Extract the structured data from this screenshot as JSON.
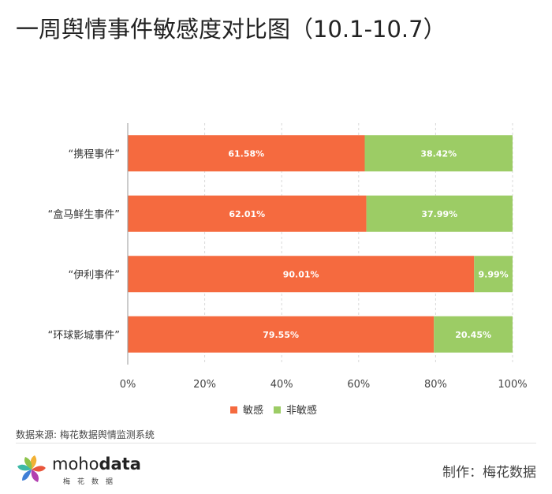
{
  "header": {
    "title": "一周舆情事件敏感度对比图（10.1-10.7）"
  },
  "chart_data": {
    "type": "bar",
    "orientation": "horizontal",
    "stacked": true,
    "categories": [
      "“携程事件”",
      "“盒马鲜生事件”",
      "“伊利事件”",
      "“环球影城事件”"
    ],
    "series": [
      {
        "name": "敏感",
        "color": "#f56a3f",
        "values": [
          61.58,
          62.01,
          90.01,
          79.55
        ],
        "labels": [
          "61.58%",
          "62.01%",
          "90.01%",
          "79.55%"
        ]
      },
      {
        "name": "非敏感",
        "color": "#9ccc65",
        "values": [
          38.42,
          37.99,
          9.99,
          20.45
        ],
        "labels": [
          "38.42%",
          "37.99%",
          "9.99%",
          "20.45%"
        ]
      }
    ],
    "xlim": [
      0,
      100
    ],
    "xticks": [
      0,
      20,
      40,
      60,
      80,
      100
    ],
    "xtick_labels": [
      "0%",
      "20%",
      "40%",
      "60%",
      "80%",
      "100%"
    ],
    "grid": true,
    "legend_position": "bottom"
  },
  "footer": {
    "source": "数据来源: 梅花数据舆情监测系统",
    "logo_name_light": "moho",
    "logo_name_bold": "data",
    "logo_sub": "梅花数据",
    "maker": "制作：梅花数据"
  }
}
